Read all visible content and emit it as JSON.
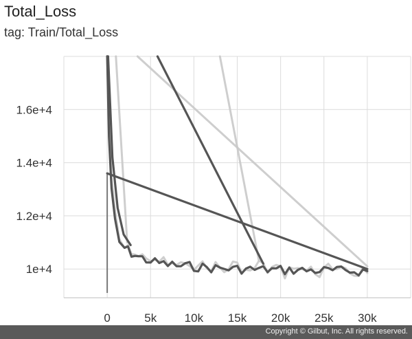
{
  "header": {
    "title": "Total_Loss",
    "tag": "tag: Train/Total_Loss"
  },
  "footer": {
    "copyright": "Copyright © Gilbut, Inc. All rights reserved."
  },
  "colors": {
    "smoothed": "#555555",
    "raw": "#c9c9c9",
    "grid": "#dcdcdc",
    "footer": "#5a5a5a"
  },
  "chart_data": {
    "type": "line",
    "title": "Total_Loss",
    "subtitle": "tag: Train/Total_Loss",
    "xlabel": "",
    "ylabel": "",
    "xlim": [
      -5000,
      35000
    ],
    "ylim": [
      9100,
      18000
    ],
    "grid": true,
    "x_ticks": [
      0,
      5000,
      10000,
      15000,
      20000,
      25000,
      30000
    ],
    "x_tick_labels": [
      "0",
      "5k",
      "10k",
      "15k",
      "20k",
      "25k",
      "30k"
    ],
    "y_ticks": [
      10000,
      12000,
      14000,
      16000
    ],
    "y_tick_labels": [
      "1e+4",
      "1.2e+4",
      "1.4e+4",
      "1.6e+4"
    ],
    "series": [
      {
        "role": "raw",
        "x": [
          0,
          200,
          500,
          900,
          1400,
          2000,
          2800,
          3600,
          4500,
          5500,
          6500,
          7500,
          8500,
          9500,
          10500,
          11500,
          12500,
          13500,
          14500,
          15500,
          16500,
          17500,
          18500,
          19500,
          20500,
          21500,
          22500,
          23500,
          24500,
          25500,
          26500,
          27500,
          28500,
          29500,
          30000
        ],
        "y": [
          18000,
          15500,
          13300,
          12100,
          11100,
          10800,
          10700,
          10450,
          10500,
          10200,
          10350,
          10100,
          10250,
          9950,
          10300,
          10000,
          10150,
          9900,
          10200,
          10050,
          9850,
          10250,
          9950,
          10100,
          9800,
          10150,
          9900,
          10050,
          9750,
          10100,
          9850,
          10000,
          9800,
          10000,
          9850
        ]
      },
      {
        "role": "smoothed",
        "x": [
          0,
          200,
          500,
          900,
          1400,
          2000,
          2800,
          3600,
          4500,
          5500,
          6500,
          7500,
          8500,
          9500,
          10500,
          11500,
          12500,
          13500,
          14500,
          15500,
          16500,
          17500,
          18500,
          19500,
          20500,
          21500,
          22500,
          23500,
          24500,
          25500,
          26500,
          27500,
          28500,
          29500,
          30000
        ],
        "y": [
          18000,
          15000,
          12900,
          11800,
          11000,
          10800,
          10600,
          10450,
          10350,
          10250,
          10200,
          10150,
          10100,
          10100,
          10080,
          10050,
          10030,
          10020,
          10000,
          10000,
          9990,
          9980,
          9980,
          9970,
          9960,
          9960,
          9950,
          9950,
          9940,
          9940,
          9930,
          9930,
          9930,
          9920,
          9920
        ]
      },
      {
        "role": "smoothed",
        "x": [
          100,
          600,
          1200,
          1900,
          2700
        ],
        "y": [
          18000,
          14200,
          12300,
          11300,
          10900
        ]
      },
      {
        "role": "smoothed",
        "x": [
          0,
          30000
        ],
        "y": [
          13600,
          10000
        ]
      },
      {
        "role": "smoothed",
        "x": [
          5800,
          18000
        ],
        "y": [
          18000,
          10200
        ]
      },
      {
        "role": "raw",
        "x": [
          3500,
          30000
        ],
        "y": [
          18000,
          10100
        ]
      },
      {
        "role": "raw",
        "x": [
          13000,
          17500
        ],
        "y": [
          18000,
          10300
        ]
      },
      {
        "role": "raw",
        "x": [
          1000,
          2300
        ],
        "y": [
          18000,
          11000
        ]
      }
    ]
  }
}
